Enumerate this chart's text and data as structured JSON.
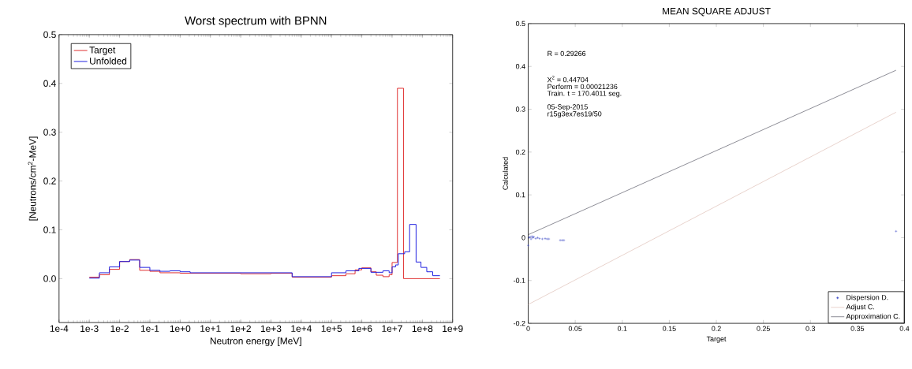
{
  "chart_data": [
    {
      "type": "step",
      "title": "Worst spectrum with BPNN",
      "xlabel": "Neutron energy [MeV]",
      "ylabel": "[Neutrons/cm$^{2}$-MeV]",
      "log": "x",
      "grid": false,
      "legend": "top left",
      "xlim": [
        0.0001,
        1000000000
      ],
      "ylim": [
        -0.09,
        0.5
      ],
      "xticks": [
        {
          "value": 0.0001,
          "label": "1e-4"
        },
        {
          "value": 0.001,
          "label": "1e-3"
        },
        {
          "value": 0.01,
          "label": "1e-2"
        },
        {
          "value": 0.1,
          "label": "1e-1"
        },
        {
          "value": 1,
          "label": "1e+0"
        },
        {
          "value": 10,
          "label": "1e+1"
        },
        {
          "value": 100,
          "label": "1e+2"
        },
        {
          "value": 1000,
          "label": "1e+3"
        },
        {
          "value": 10000,
          "label": "1e+4"
        },
        {
          "value": 100000,
          "label": "1e+5"
        },
        {
          "value": 1000000,
          "label": "1e+6"
        },
        {
          "value": 10000000,
          "label": "1e+7"
        },
        {
          "value": 100000000,
          "label": "1e+8"
        },
        {
          "value": 1000000000,
          "label": "1e+9"
        }
      ],
      "yticks": [
        {
          "value": 0,
          "label": "0.0"
        },
        0.1,
        0.2,
        0.3,
        0.4,
        0.5
      ],
      "series": [
        {
          "name": "Target",
          "color": "#e03030",
          "x": [
            0.001,
            0.00215,
            0.0046,
            0.01,
            0.0215,
            0.046,
            0.1,
            0.215,
            1,
            100,
            1000,
            5000,
            100000,
            300000,
            600000,
            1000000,
            2000000,
            3000000,
            5000000,
            8000000,
            10000000,
            15000000,
            24000000,
            380000000
          ],
          "values": [
            0.003,
            0.008,
            0.019,
            0.035,
            0.039,
            0.017,
            0.015,
            0.012,
            0.011,
            0.01,
            0.011,
            0.003,
            0.006,
            0.01,
            0.018,
            0.022,
            0.014,
            0.007,
            0.004,
            0.008,
            0.033,
            0.39,
            0,
            0
          ]
        },
        {
          "name": "Unfolded",
          "color": "#2020e0",
          "x": [
            0.001,
            0.00215,
            0.0046,
            0.01,
            0.0215,
            0.046,
            0.1,
            0.215,
            0.46,
            1,
            2.15,
            5000,
            100000,
            300000,
            800000,
            2000000,
            5000000,
            8000000,
            10000000,
            13000000,
            16000000,
            26000000,
            38000000,
            62000000,
            90000000,
            140000000,
            220000000,
            380000000
          ],
          "values": [
            0.001,
            0.012,
            0.024,
            0.035,
            0.038,
            0.023,
            0.017,
            0.015,
            0.016,
            0.014,
            0.012,
            0.004,
            0.012,
            0.016,
            0.021,
            0.013,
            0.016,
            0.012,
            0.024,
            0.028,
            0.051,
            0.055,
            0.111,
            0.034,
            0.023,
            0.014,
            0.006,
            0.006
          ]
        }
      ]
    },
    {
      "type": "scatter",
      "title": "MEAN SQUARE ADJUST",
      "xlabel": "Target",
      "ylabel": "Calculated",
      "grid": false,
      "legend": "bottom right",
      "marker": "cross",
      "xlim": [
        0,
        0.4
      ],
      "ylim": [
        -0.2,
        0.5
      ],
      "xticks": [
        0,
        0.05,
        0.1,
        0.15,
        0.2,
        0.25,
        0.3,
        0.35,
        0.4
      ],
      "yticks": [
        -0.2,
        -0.1,
        0,
        0.1,
        0.2,
        0.3,
        0.4,
        0.5
      ],
      "annotations": [
        "R  = 0.29266",
        "X$^{2}$ = 0.44704",
        "Perform = 0.00021236",
        "Train. t = 170.4011 seg.",
        "05-Sep-2015",
        "r15g3ex7es19/50"
      ],
      "series": [
        {
          "name": "Dispersion D.",
          "color": "#2030c0",
          "x": [
            0,
            0.001,
            0.002,
            0.003,
            0.004,
            0.005,
            0.006,
            0.008,
            0.01,
            0.012,
            0.015,
            0.018,
            0.02,
            0.022,
            0.034,
            0.036,
            0.038,
            0.391
          ],
          "values": [
            -0.018,
            0,
            0.002,
            -0.003,
            0.003,
            0,
            0.002,
            -0.002,
            0,
            -0.002,
            -0.003,
            -0.002,
            -0.003,
            -0.003,
            -0.006,
            -0.006,
            -0.006,
            0.015
          ]
        },
        {
          "name": "Adjust C.",
          "type": "line",
          "marker": "none",
          "color": "#d8b4aa",
          "x": [
            0,
            0.391
          ],
          "values": [
            -0.156,
            0.293
          ]
        },
        {
          "name": "Approximation C.",
          "type": "line",
          "marker": "none",
          "color": "#404050",
          "x": [
            0,
            0.391
          ],
          "values": [
            0.007,
            0.391
          ]
        }
      ]
    }
  ]
}
